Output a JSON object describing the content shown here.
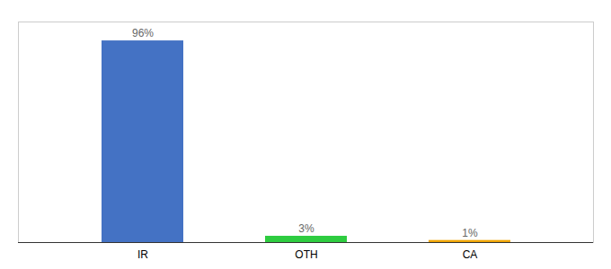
{
  "chart_data": {
    "type": "bar",
    "categories": [
      "IR",
      "OTH",
      "CA"
    ],
    "values": [
      96,
      3,
      1
    ],
    "value_labels": [
      "96%",
      "3%",
      "1%"
    ],
    "colors": [
      "#4472c4",
      "#2ecc40",
      "#f0a500"
    ],
    "ylim": [
      0,
      105
    ],
    "data_labels": true,
    "tick_labels": "x",
    "grid": false
  }
}
